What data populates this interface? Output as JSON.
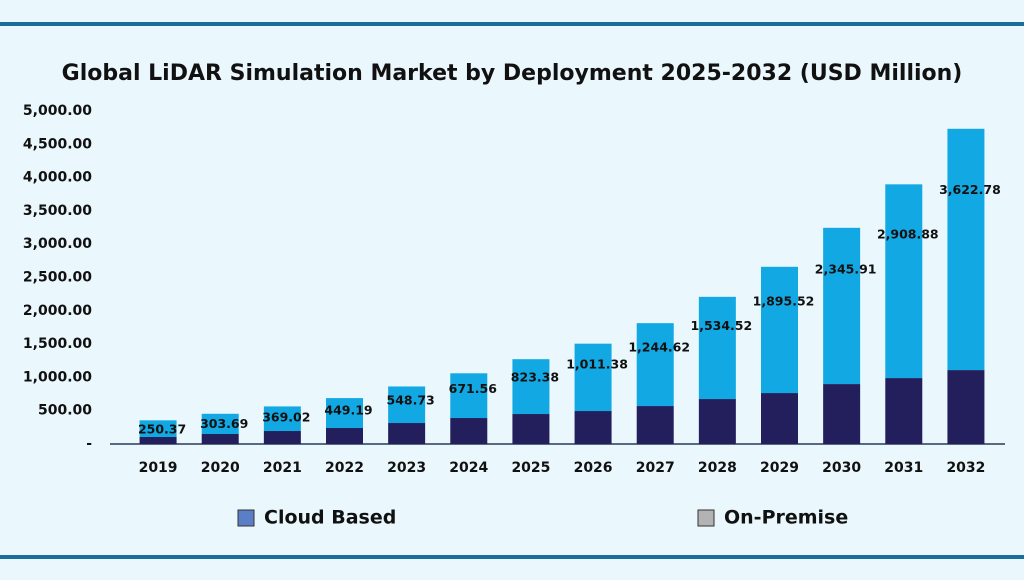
{
  "chart_data": {
    "type": "stacked-bar",
    "title": "Global LiDAR Simulation Market by Deployment 2025-2032 (USD Million)",
    "categories": [
      "2019",
      "2020",
      "2021",
      "2022",
      "2023",
      "2024",
      "2025",
      "2026",
      "2027",
      "2028",
      "2029",
      "2030",
      "2031",
      "2032"
    ],
    "series": [
      {
        "name": "Cloud Based",
        "color": "#12a8e3",
        "legend_color": "#5b7fc7",
        "values": [
          250.37,
          303.69,
          369.02,
          449.19,
          548.73,
          671.56,
          823.38,
          1011.38,
          1244.62,
          1534.52,
          1895.52,
          2345.91,
          2908.88,
          3622.78
        ],
        "value_labels": [
          "250.37",
          "303.69",
          "369.02",
          "449.19",
          "548.73",
          "671.56",
          "823.38",
          "1,011.38",
          "1,244.62",
          "1,534.52",
          "1,895.52",
          "2,345.91",
          "2,908.88",
          "3,622.78"
        ]
      },
      {
        "name": "On-Premise",
        "color": "#221f5c",
        "legend_color": "#b3b3b3",
        "values": [
          105,
          150,
          195,
          240,
          315,
          390,
          450,
          495,
          570,
          675,
          765,
          900,
          990,
          1110
        ]
      }
    ],
    "ylim": [
      0,
      5000
    ],
    "yticks": [
      {
        "value": 0,
        "label": "-"
      },
      {
        "value": 500,
        "label": "500.00"
      },
      {
        "value": 1000,
        "label": "1,000.00"
      },
      {
        "value": 1500,
        "label": "1,500.00"
      },
      {
        "value": 2000,
        "label": "2,000.00"
      },
      {
        "value": 2500,
        "label": "2,500.00"
      },
      {
        "value": 3000,
        "label": "3,000.00"
      },
      {
        "value": 3500,
        "label": "3,500.00"
      },
      {
        "value": 4000,
        "label": "4,000.00"
      },
      {
        "value": 4500,
        "label": "4,500.00"
      },
      {
        "value": 5000,
        "label": "5,000.00"
      }
    ]
  }
}
